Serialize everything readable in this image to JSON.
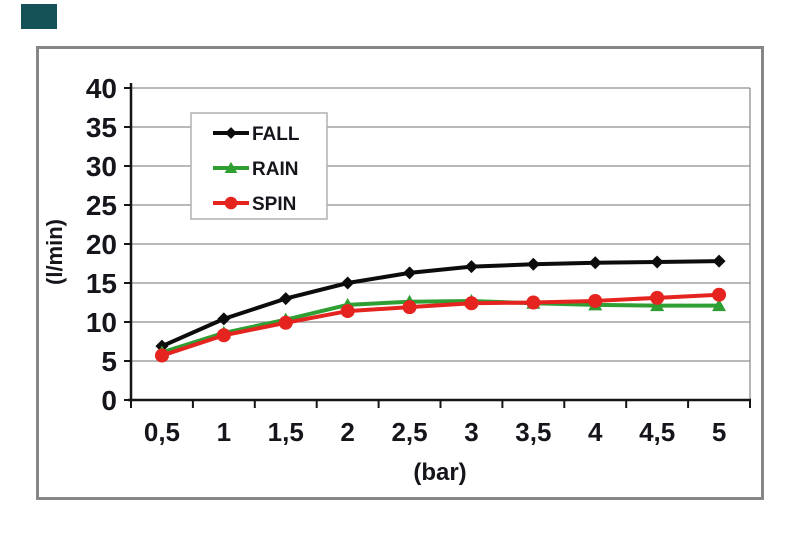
{
  "page": {
    "corner_mark_color": "#155257"
  },
  "frame": {
    "border_color": "#878787",
    "fill": "#ffffff"
  },
  "chart_data": {
    "type": "line",
    "title": "",
    "xlabel": "(bar)",
    "ylabel": "(l/min)",
    "x_tick_labels": [
      "0,5",
      "1",
      "1,5",
      "2",
      "2,5",
      "3",
      "3,5",
      "4",
      "4,5",
      "5"
    ],
    "x_values": [
      0.5,
      1,
      1.5,
      2,
      2.5,
      3,
      3.5,
      4,
      4.5,
      5
    ],
    "ylim": [
      0,
      40
    ],
    "y_tick_step": 5,
    "y_tick_labels": [
      "0",
      "5",
      "10",
      "15",
      "20",
      "25",
      "30",
      "35",
      "40"
    ],
    "grid": true,
    "legend_position": "upper-left-inside",
    "series": [
      {
        "name": "FALL",
        "color": "#0c0c0c",
        "marker": "diamond",
        "values": [
          6.9,
          10.4,
          13.0,
          15.0,
          16.3,
          17.1,
          17.4,
          17.6,
          17.7,
          17.8
        ]
      },
      {
        "name": "RAIN",
        "color": "#2f9e33",
        "marker": "triangle",
        "values": [
          6.1,
          8.6,
          10.3,
          12.2,
          12.6,
          12.7,
          12.4,
          12.2,
          12.1,
          12.1
        ]
      },
      {
        "name": "SPIN",
        "color": "#e52420",
        "marker": "circle",
        "values": [
          5.7,
          8.3,
          9.9,
          11.4,
          11.9,
          12.4,
          12.5,
          12.7,
          13.1,
          13.5
        ]
      }
    ],
    "colors": {
      "gridline": "#8f8f8f",
      "axis": "#151515",
      "tick_label": "#15151c",
      "legend_border": "#b0b0b0",
      "legend_fill": "#ffffff"
    }
  }
}
